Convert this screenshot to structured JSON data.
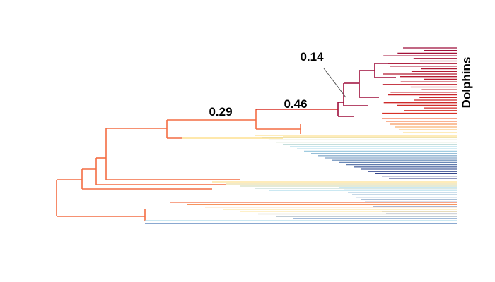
{
  "labels": {
    "clade": "Dolphins",
    "branch_a": "0.29",
    "branch_b": "0.46",
    "branch_c": "0.14"
  },
  "colors": {
    "dark_red": "#9e0d3a",
    "red": "#d73027",
    "orange": "#f46d43",
    "yellow": "#fee090",
    "light_blue": "#abd9e9",
    "blue": "#4575b4",
    "navy": "#1f2a7a"
  }
}
